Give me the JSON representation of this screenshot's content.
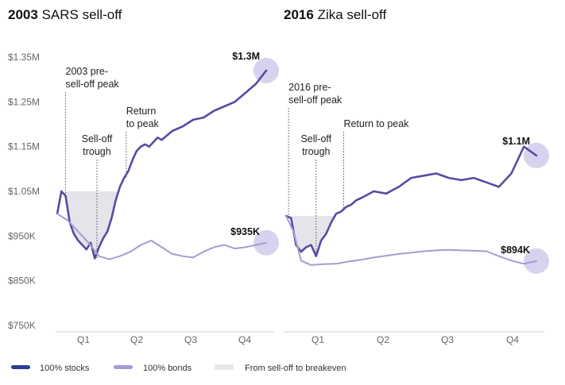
{
  "chart_data": [
    {
      "type": "line",
      "title_bold": "2003",
      "title": "SARS sell-off",
      "xlabel": "",
      "ylabel": "",
      "ylim": [
        750000,
        1350000
      ],
      "y_ticks": [
        {
          "value": 1350000,
          "label": "$1.35M"
        },
        {
          "value": 1250000,
          "label": "$1.25M"
        },
        {
          "value": 1150000,
          "label": "$1.15M"
        },
        {
          "value": 1050000,
          "label": "$1.05M"
        },
        {
          "value": 950000,
          "label": "$950K"
        },
        {
          "value": 850000,
          "label": "$850K"
        },
        {
          "value": 750000,
          "label": "$750K"
        }
      ],
      "x_ticks": [
        "Q1",
        "Q2",
        "Q3",
        "Q4"
      ],
      "series": [
        {
          "name": "100% stocks",
          "color": "#5a4aa2",
          "x": [
            0,
            2,
            4,
            6,
            8,
            10,
            12,
            14,
            16,
            18,
            20,
            22,
            24,
            26,
            28,
            30,
            32,
            34,
            36,
            38,
            40,
            42,
            44,
            46,
            48,
            50,
            55,
            60,
            65,
            70,
            75,
            80,
            85,
            90,
            95,
            100
          ],
          "values": [
            1000000,
            1050000,
            1040000,
            980000,
            955000,
            940000,
            930000,
            920000,
            935000,
            900000,
            925000,
            945000,
            960000,
            990000,
            1030000,
            1060000,
            1080000,
            1095000,
            1120000,
            1140000,
            1150000,
            1155000,
            1150000,
            1160000,
            1170000,
            1165000,
            1185000,
            1195000,
            1210000,
            1215000,
            1230000,
            1240000,
            1250000,
            1270000,
            1290000,
            1320000
          ]
        },
        {
          "name": "100% bonds",
          "color": "#a99ad4",
          "x": [
            0,
            5,
            10,
            15,
            20,
            25,
            30,
            35,
            40,
            45,
            50,
            55,
            60,
            65,
            70,
            75,
            80,
            85,
            90,
            95,
            100
          ],
          "values": [
            1000000,
            985000,
            960000,
            935000,
            905000,
            898000,
            905000,
            915000,
            930000,
            940000,
            925000,
            910000,
            905000,
            902000,
            915000,
            925000,
            930000,
            922000,
            925000,
            930000,
            935000
          ]
        }
      ],
      "annotations": [
        {
          "label_lines": [
            "2003 pre-",
            "sell-off peak"
          ],
          "x": 4
        },
        {
          "label_lines": [
            "Sell-off",
            "trough"
          ],
          "x": 19
        },
        {
          "label_lines": [
            "Return",
            "to peak"
          ],
          "x": 33
        }
      ],
      "shaded_region": {
        "x_start": 4,
        "x_end": 33,
        "y_top": 1050000
      },
      "end_labels": [
        {
          "label": "$1.3M",
          "value": 1320000
        },
        {
          "label": "$935K",
          "value": 935000
        }
      ]
    },
    {
      "type": "line",
      "title_bold": "2016",
      "title": "Zika sell-off",
      "xlabel": "",
      "ylabel": "",
      "ylim": [
        750000,
        1350000
      ],
      "x_ticks": [
        "Q1",
        "Q2",
        "Q3",
        "Q4"
      ],
      "series": [
        {
          "name": "100% stocks",
          "color": "#5a4aa2",
          "x": [
            0,
            2,
            4,
            6,
            8,
            10,
            12,
            14,
            16,
            18,
            20,
            22,
            24,
            26,
            28,
            30,
            35,
            40,
            45,
            50,
            55,
            60,
            65,
            70,
            75,
            80,
            85,
            90,
            95,
            100
          ],
          "values": [
            995000,
            990000,
            930000,
            915000,
            925000,
            930000,
            905000,
            940000,
            955000,
            980000,
            1000000,
            1005000,
            1015000,
            1020000,
            1030000,
            1035000,
            1050000,
            1045000,
            1060000,
            1080000,
            1085000,
            1090000,
            1080000,
            1075000,
            1080000,
            1070000,
            1060000,
            1090000,
            1150000,
            1130000
          ]
        },
        {
          "name": "100% bonds",
          "color": "#a99ad4",
          "x": [
            0,
            3,
            6,
            10,
            15,
            20,
            25,
            30,
            35,
            40,
            45,
            50,
            55,
            60,
            65,
            70,
            75,
            80,
            85,
            90,
            95,
            100
          ],
          "values": [
            995000,
            960000,
            895000,
            885000,
            887000,
            888000,
            893000,
            897000,
            902000,
            906000,
            910000,
            913000,
            916000,
            918000,
            919000,
            918000,
            917000,
            916000,
            905000,
            895000,
            888000,
            894000
          ]
        }
      ],
      "annotations": [
        {
          "label_lines": [
            "2016 pre-",
            "sell-off peak"
          ],
          "x": 1
        },
        {
          "label_lines": [
            "Sell-off",
            "trough"
          ],
          "x": 12
        },
        {
          "label_lines": [
            "Return to peak"
          ],
          "x": 23
        }
      ],
      "shaded_region": {
        "x_start": 1,
        "x_end": 23,
        "y_top": 995000
      },
      "end_labels": [
        {
          "label": "$1.1M",
          "value": 1130000
        },
        {
          "label": "$894K",
          "value": 894000
        }
      ]
    }
  ],
  "legend": [
    {
      "label": "100% stocks",
      "color": "#2a3e9a",
      "kind": "line"
    },
    {
      "label": "100% bonds",
      "color": "#a99ad4",
      "kind": "line"
    },
    {
      "label": "From sell-off to breakeven",
      "color": "#e8e8ec",
      "kind": "area"
    }
  ],
  "colors": {
    "highlight_circle": "#d7d3ee",
    "shade": "#e4e4ea",
    "axis": "#cfcfcf"
  }
}
